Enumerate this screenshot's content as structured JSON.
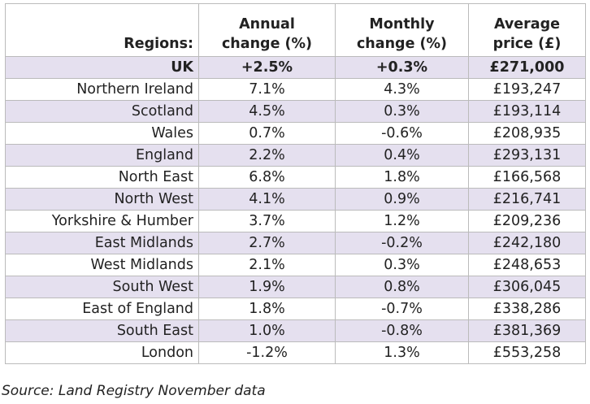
{
  "table": {
    "header": [
      [
        "Regions:"
      ],
      [
        "Annual",
        "change (%)"
      ],
      [
        "Monthly",
        "change (%)"
      ],
      [
        "Average",
        "price (£)"
      ]
    ],
    "rows": [
      [
        "UK",
        "+2.5%",
        "+0.3%",
        "£271,000"
      ],
      [
        "Northern Ireland",
        "7.1%",
        "4.3%",
        "£193,247"
      ],
      [
        "Scotland",
        "4.5%",
        "0.3%",
        "£193,114"
      ],
      [
        "Wales",
        "0.7%",
        "-0.6%",
        "£208,935"
      ],
      [
        "England",
        "2.2%",
        "0.4%",
        "£293,131"
      ],
      [
        "North East",
        "6.8%",
        "1.8%",
        "£166,568"
      ],
      [
        "North West",
        "4.1%",
        "0.9%",
        "£216,741"
      ],
      [
        "Yorkshire & Humber",
        "3.7%",
        "1.2%",
        "£209,236"
      ],
      [
        "East Midlands",
        "2.7%",
        "-0.2%",
        "£242,180"
      ],
      [
        "West Midlands",
        "2.1%",
        "0.3%",
        "£248,653"
      ],
      [
        "South West",
        "1.9%",
        "0.8%",
        "£306,045"
      ],
      [
        "East of England",
        "1.8%",
        "-0.7%",
        "£338,286"
      ],
      [
        "South East",
        "1.0%",
        "-0.8%",
        "£381,369"
      ],
      [
        "London",
        "-1.2%",
        "1.3%",
        "£553,258"
      ]
    ]
  },
  "source": "Source: Land Registry November data"
}
